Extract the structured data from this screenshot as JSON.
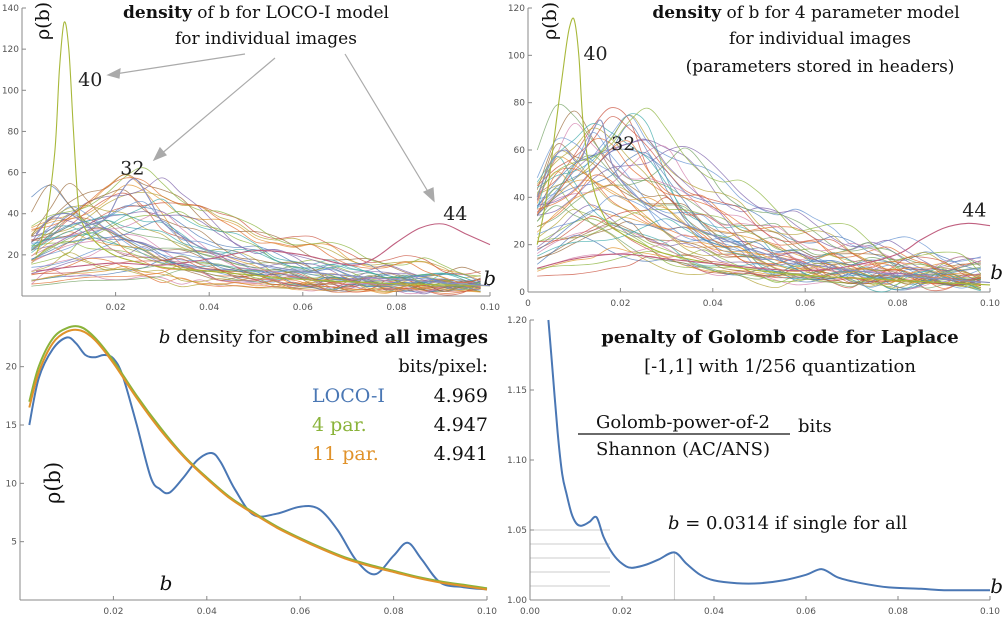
{
  "chart_data": [
    {
      "type": "line",
      "panel": "top-left",
      "title_bold": "density",
      "title_rest": " of b for LOCO-I model",
      "title_line2": "for individual images",
      "xlabel": "b",
      "ylabel": "ρ(b)",
      "xlim": [
        0,
        0.1
      ],
      "ylim": [
        0,
        140
      ],
      "xticks": [
        "0.02",
        "0.04",
        "0.06",
        "0.08",
        "0.10"
      ],
      "xtick_values": [
        0.02,
        0.04,
        0.06,
        0.08,
        0.1
      ],
      "yticks": [
        "20",
        "40",
        "60",
        "80",
        "100",
        "120",
        "140"
      ],
      "ytick_values": [
        20,
        40,
        60,
        80,
        100,
        120,
        140
      ],
      "annotations": [
        {
          "text": "40",
          "x": 0.012,
          "y": 102
        },
        {
          "text": "32",
          "x": 0.021,
          "y": 59
        },
        {
          "text": "44",
          "x": 0.09,
          "y": 37
        }
      ],
      "highlighted_series": [
        {
          "label": "40",
          "color": "#a8b83a",
          "x": [
            0.003,
            0.005,
            0.007,
            0.008,
            0.009,
            0.01,
            0.011,
            0.012,
            0.013,
            0.015,
            0.018,
            0.022,
            0.03,
            0.04,
            0.05,
            0.06,
            0.08,
            0.1
          ],
          "y": [
            20,
            35,
            70,
            110,
            133,
            120,
            80,
            45,
            35,
            28,
            22,
            18,
            14,
            12,
            10,
            8,
            6,
            5
          ]
        },
        {
          "label": "32",
          "color": "#8a8fc0",
          "x": [
            0.003,
            0.006,
            0.01,
            0.014,
            0.018,
            0.021,
            0.024,
            0.027,
            0.03,
            0.035,
            0.04,
            0.05,
            0.06,
            0.08,
            0.1
          ],
          "y": [
            30,
            38,
            40,
            35,
            38,
            50,
            57,
            48,
            36,
            28,
            22,
            16,
            12,
            8,
            5
          ]
        },
        {
          "label": "44",
          "color": "#c06080",
          "x": [
            0.003,
            0.01,
            0.02,
            0.03,
            0.04,
            0.05,
            0.06,
            0.07,
            0.075,
            0.08,
            0.085,
            0.09,
            0.095,
            0.1
          ],
          "y": [
            12,
            14,
            16,
            15,
            18,
            22,
            20,
            15,
            18,
            26,
            33,
            35,
            30,
            25
          ]
        }
      ]
    },
    {
      "type": "line",
      "panel": "top-right",
      "title_bold": "density",
      "title_rest": " of b for 4 parameter model",
      "title_line2": "for individual images",
      "title_line3": "(parameters stored in headers)",
      "xlabel": "b",
      "ylabel": "ρ(b)",
      "xlim": [
        0,
        0.1
      ],
      "ylim": [
        0,
        120
      ],
      "xticks": [
        "0",
        "0.02",
        "0.04",
        "0.06",
        "0.08",
        "0.10"
      ],
      "xtick_values": [
        0,
        0.02,
        0.04,
        0.06,
        0.08,
        0.1
      ],
      "yticks": [
        "0",
        "20",
        "40",
        "60",
        "80",
        "100",
        "120"
      ],
      "ytick_values": [
        0,
        20,
        40,
        60,
        80,
        100,
        120
      ],
      "annotations": [
        {
          "text": "40",
          "x": 0.012,
          "y": 98
        },
        {
          "text": "32",
          "x": 0.018,
          "y": 60
        },
        {
          "text": "44",
          "x": 0.094,
          "y": 32
        }
      ],
      "highlighted_series": [
        {
          "label": "40",
          "color": "#a8b83a",
          "x": [
            0.002,
            0.004,
            0.006,
            0.008,
            0.009,
            0.01,
            0.011,
            0.012,
            0.014,
            0.017,
            0.02,
            0.025,
            0.03,
            0.04,
            0.05,
            0.06,
            0.08,
            0.1
          ],
          "y": [
            20,
            40,
            70,
            100,
            112,
            115,
            100,
            70,
            45,
            30,
            25,
            20,
            16,
            12,
            9,
            7,
            5,
            3
          ]
        },
        {
          "label": "32",
          "color": "#8a8fc0",
          "x": [
            0.002,
            0.005,
            0.008,
            0.011,
            0.014,
            0.016,
            0.018,
            0.021,
            0.025,
            0.03,
            0.04,
            0.05,
            0.06,
            0.08,
            0.1
          ],
          "y": [
            40,
            55,
            60,
            55,
            68,
            72,
            55,
            45,
            38,
            32,
            24,
            17,
            12,
            7,
            4
          ]
        },
        {
          "label": "44",
          "color": "#c06080",
          "x": [
            0.002,
            0.01,
            0.02,
            0.03,
            0.04,
            0.05,
            0.06,
            0.07,
            0.08,
            0.085,
            0.09,
            0.095,
            0.1
          ],
          "y": [
            10,
            14,
            16,
            14,
            12,
            10,
            9,
            11,
            16,
            22,
            27,
            29,
            28
          ]
        }
      ]
    },
    {
      "type": "line",
      "panel": "bottom-left",
      "title_prefix": "b",
      "title_mid": " density for ",
      "title_bold": "combined all images",
      "xlabel": "b",
      "ylabel": "ρ(b)",
      "xlim": [
        0,
        0.1
      ],
      "ylim": [
        0,
        24
      ],
      "xticks": [
        "0.02",
        "0.04",
        "0.06",
        "0.08",
        "0.10"
      ],
      "xtick_values": [
        0.02,
        0.04,
        0.06,
        0.08,
        0.1
      ],
      "yticks": [
        "5",
        "10",
        "15",
        "20"
      ],
      "ytick_values": [
        5,
        10,
        15,
        20
      ],
      "legend_heading": "bits/pixel:",
      "series": [
        {
          "name": "LOCO-I",
          "bits": "4.969",
          "color": "#4a77b4",
          "x": [
            0.002,
            0.004,
            0.007,
            0.01,
            0.012,
            0.014,
            0.016,
            0.018,
            0.02,
            0.022,
            0.025,
            0.028,
            0.03,
            0.032,
            0.035,
            0.038,
            0.041,
            0.043,
            0.046,
            0.05,
            0.055,
            0.06,
            0.064,
            0.068,
            0.072,
            0.076,
            0.08,
            0.083,
            0.086,
            0.09,
            0.095,
            0.1
          ],
          "y": [
            15,
            19,
            21.5,
            22.5,
            22,
            21,
            20.8,
            21,
            20.7,
            19.2,
            15,
            10.5,
            9.5,
            9.2,
            10.5,
            12,
            12.6,
            11.8,
            9.5,
            7.3,
            7.4,
            8,
            7.8,
            6,
            3.4,
            2.2,
            3.8,
            4.9,
            3.5,
            1.5,
            1.1,
            0.9
          ]
        },
        {
          "name": "4 par.",
          "bits": "4.947",
          "color": "#8ab33a",
          "x": [
            0.002,
            0.004,
            0.007,
            0.01,
            0.013,
            0.016,
            0.02,
            0.025,
            0.03,
            0.035,
            0.04,
            0.045,
            0.05,
            0.055,
            0.06,
            0.065,
            0.07,
            0.075,
            0.08,
            0.085,
            0.09,
            0.095,
            0.1
          ],
          "y": [
            17,
            20,
            22.4,
            23.3,
            23.4,
            22.5,
            20.5,
            17.5,
            14.8,
            12.4,
            10.5,
            8.8,
            7.5,
            6.3,
            5.3,
            4.4,
            3.6,
            3.0,
            2.5,
            2.0,
            1.6,
            1.3,
            1.0
          ]
        },
        {
          "name": "11 par.",
          "bits": "4.941",
          "color": "#e0922a",
          "x": [
            0.002,
            0.004,
            0.007,
            0.01,
            0.013,
            0.016,
            0.02,
            0.025,
            0.03,
            0.035,
            0.04,
            0.045,
            0.05,
            0.055,
            0.06,
            0.065,
            0.07,
            0.075,
            0.08,
            0.085,
            0.09,
            0.095,
            0.1
          ],
          "y": [
            16.5,
            19.5,
            22,
            23,
            23.1,
            22.3,
            20.3,
            17.3,
            14.6,
            12.3,
            10.4,
            8.7,
            7.4,
            6.2,
            5.2,
            4.3,
            3.5,
            2.9,
            2.4,
            1.9,
            1.5,
            1.2,
            0.9
          ]
        }
      ]
    },
    {
      "type": "line",
      "panel": "bottom-right",
      "title_bold": "penalty of Golomb code for Laplace",
      "title_line2": "[-1,1] with 1/256 quantization",
      "fraction_num": "Golomb-power-of-2",
      "fraction_den": "Shannon (AC/ANS)",
      "fraction_unit": "bits",
      "xlabel": "b",
      "xlim": [
        0,
        0.1
      ],
      "ylim": [
        1.0,
        1.2
      ],
      "xticks": [
        "0.00",
        "0.02",
        "0.04",
        "0.06",
        "0.08",
        "0.10"
      ],
      "xtick_values": [
        0,
        0.02,
        0.04,
        0.06,
        0.08,
        0.1
      ],
      "yticks": [
        "1.00",
        "1.05",
        "1.10",
        "1.15",
        "1.20"
      ],
      "ytick_values": [
        1.0,
        1.05,
        1.1,
        1.15,
        1.2
      ],
      "annotation_var": "b",
      "annotation_rest": " = 0.0314 if single for all",
      "annotation_x": 0.0314,
      "series": [
        {
          "name": "penalty",
          "color": "#4a77b4",
          "x": [
            0.004,
            0.005,
            0.006,
            0.007,
            0.008,
            0.009,
            0.01,
            0.011,
            0.012,
            0.013,
            0.0145,
            0.016,
            0.018,
            0.02,
            0.022,
            0.025,
            0.028,
            0.0314,
            0.034,
            0.037,
            0.04,
            0.045,
            0.05,
            0.055,
            0.06,
            0.0635,
            0.067,
            0.072,
            0.078,
            0.085,
            0.09,
            0.095,
            0.1
          ],
          "y": [
            1.2,
            1.16,
            1.12,
            1.09,
            1.075,
            1.062,
            1.055,
            1.053,
            1.054,
            1.056,
            1.059,
            1.045,
            1.033,
            1.026,
            1.023,
            1.025,
            1.029,
            1.034,
            1.026,
            1.018,
            1.014,
            1.012,
            1.012,
            1.014,
            1.018,
            1.022,
            1.016,
            1.012,
            1.009,
            1.008,
            1.007,
            1.007,
            1.007
          ]
        }
      ]
    }
  ]
}
